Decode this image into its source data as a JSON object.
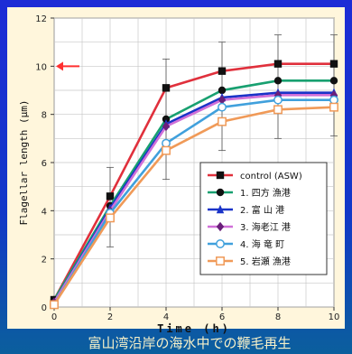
{
  "caption": "富山湾沿岸の海水中での鞭毛再生",
  "chart_data": {
    "type": "line",
    "xlabel": "Time (h)",
    "ylabel": "Flagellar length (μm)",
    "x": [
      0,
      2,
      4,
      6,
      8,
      10
    ],
    "xticks": [
      "0",
      "2",
      "4",
      "6",
      "8",
      "10"
    ],
    "yticks": [
      "0",
      "2",
      "4",
      "6",
      "8",
      "10",
      "12"
    ],
    "xlim": [
      0,
      10
    ],
    "ylim": [
      0,
      12
    ],
    "grid": true,
    "legend_position": "bottom-right",
    "series": [
      {
        "name": "control (ASW)",
        "values": [
          0.3,
          4.6,
          9.1,
          9.8,
          10.1,
          10.1
        ],
        "color": "#e0303c",
        "marker": "square-filled"
      },
      {
        "name": "1. 四方 漁港",
        "values": [
          0.3,
          4.2,
          7.8,
          9.0,
          9.4,
          9.4
        ],
        "color": "#18a070",
        "marker": "circle-filled"
      },
      {
        "name": "2. 富 山 港",
        "values": [
          0.2,
          4.1,
          7.6,
          8.7,
          8.9,
          8.9
        ],
        "color": "#1a33c8",
        "marker": "triangle-filled"
      },
      {
        "name": "3. 海老江 港",
        "values": [
          0.2,
          4.0,
          7.5,
          8.6,
          8.8,
          8.8
        ],
        "color": "#d070d8",
        "marker": "diamond-filled"
      },
      {
        "name": "4. 海 竜 町",
        "values": [
          0.1,
          3.9,
          6.8,
          8.3,
          8.6,
          8.6
        ],
        "color": "#40a0dc",
        "marker": "circle-open"
      },
      {
        "name": "5. 岩瀬 漁港",
        "values": [
          0.1,
          3.7,
          6.5,
          7.7,
          8.2,
          8.3
        ],
        "color": "#f09a58",
        "marker": "square-open"
      }
    ],
    "reference_marker": {
      "y": 10,
      "color": "#ff3030"
    }
  }
}
